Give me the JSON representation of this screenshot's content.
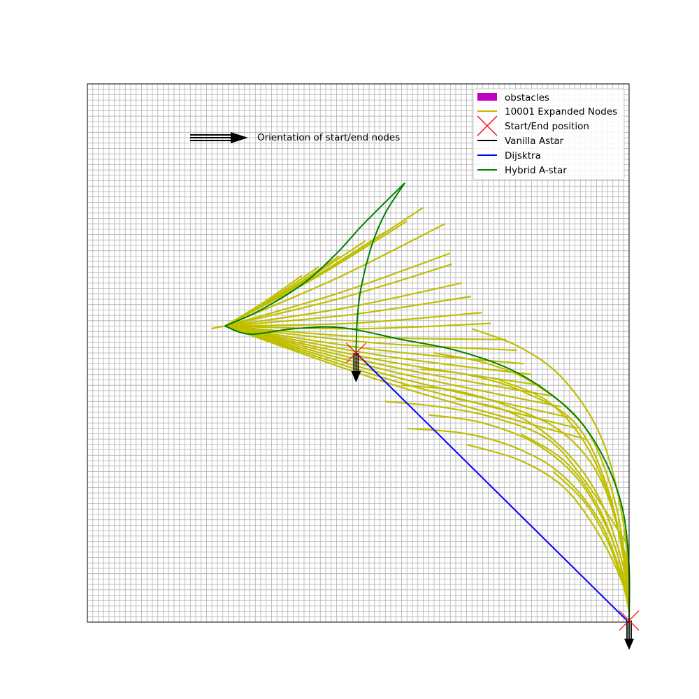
{
  "chart_data": {
    "type": "line",
    "title": "",
    "xlabel": "",
    "ylabel": "",
    "xlim": [
      0,
      100
    ],
    "ylim": [
      0,
      100
    ],
    "grid": true,
    "axis_ticks": false,
    "legend_position": "top-right",
    "legend": [
      {
        "label": "obstacles",
        "kind": "patch",
        "color": "#bf00bf"
      },
      {
        "label": "10001 Expanded Nodes",
        "kind": "line",
        "color": "#bfbf00"
      },
      {
        "label": "Start/End position",
        "kind": "x-marker",
        "color": "#ff0000"
      },
      {
        "label": "Vanilla Astar",
        "kind": "line",
        "color": "#000000"
      },
      {
        "label": "Dijsktra",
        "kind": "line",
        "color": "#0000ff"
      },
      {
        "label": "Hybrid A-star",
        "kind": "line",
        "color": "#008000"
      }
    ],
    "annotation": {
      "text": "Orientation of start/end nodes",
      "arrow_color": "#000000"
    },
    "start": {
      "x": 49.6,
      "y": 50.0,
      "heading": "down"
    },
    "end": {
      "x": 100.0,
      "y": 0.3,
      "heading": "down"
    },
    "series": [
      {
        "name": "Dijsktra",
        "color": "#0000ff",
        "points": [
          [
            49.6,
            50.0
          ],
          [
            99.6,
            0.3
          ]
        ]
      },
      {
        "name": "Vanilla Astar",
        "color": "#000000",
        "points": []
      },
      {
        "name": "Hybrid A-star",
        "color": "#008000",
        "segments": [
          [
            [
              100.0,
              0.3
            ],
            [
              100.0,
              10.0
            ],
            [
              99.0,
              20.0
            ],
            [
              96.5,
              28.0
            ],
            [
              92.0,
              36.0
            ],
            [
              86.0,
              42.0
            ],
            [
              78.0,
              47.0
            ],
            [
              68.0,
              50.5
            ],
            [
              58.0,
              52.5
            ],
            [
              47.0,
              54.7
            ],
            [
              38.0,
              54.5
            ],
            [
              30.0,
              53.5
            ],
            [
              25.4,
              55.0
            ]
          ],
          [
            [
              25.4,
              55.0
            ],
            [
              32.0,
              58.0
            ],
            [
              40.0,
              63.0
            ],
            [
              46.0,
              68.5
            ],
            [
              51.0,
              74.0
            ],
            [
              58.6,
              81.6
            ]
          ],
          [
            [
              58.6,
              81.6
            ],
            [
              55.0,
              76.0
            ],
            [
              52.5,
              70.0
            ],
            [
              50.5,
              62.0
            ],
            [
              49.8,
              56.0
            ],
            [
              49.6,
              50.0
            ]
          ]
        ]
      }
    ],
    "expanded_nodes": {
      "color": "#bfbf00",
      "upper_fan": {
        "pivot": [
          25.4,
          55.0
        ],
        "tips": [
          [
            22.9,
            54.5
          ],
          [
            39.6,
            64.4
          ],
          [
            42.7,
            66.0
          ],
          [
            46.5,
            68.0
          ],
          [
            51.3,
            70.8
          ],
          [
            55.0,
            72.5
          ],
          [
            59.0,
            74.5
          ],
          [
            62.0,
            77.0
          ],
          [
            66.0,
            74.0
          ],
          [
            66.9,
            68.5
          ],
          [
            67.3,
            66.5
          ],
          [
            69.1,
            63.0
          ],
          [
            70.8,
            60.5
          ],
          [
            72.8,
            57.5
          ],
          [
            74.5,
            55.5
          ],
          [
            77.3,
            52.5
          ],
          [
            79.3,
            50.5
          ],
          [
            80.6,
            48.0
          ],
          [
            82.0,
            46.0
          ],
          [
            83.7,
            44.0
          ],
          [
            85.9,
            42.0
          ],
          [
            87.5,
            40.0
          ],
          [
            89.0,
            38.0
          ],
          [
            90.5,
            36.0
          ],
          [
            92.0,
            34.0
          ]
        ]
      },
      "lower_strands": [
        [
          [
            55.0,
            41.0
          ],
          [
            65.0,
            40.0
          ],
          [
            75.0,
            38.0
          ],
          [
            85.0,
            34.0
          ],
          [
            92.0,
            26.0
          ],
          [
            100.0,
            14.0
          ]
        ],
        [
          [
            58.0,
            44.0
          ],
          [
            68.0,
            43.0
          ],
          [
            78.0,
            40.0
          ],
          [
            88.0,
            35.0
          ],
          [
            95.0,
            26.0
          ],
          [
            100.0,
            10.0
          ]
        ],
        [
          [
            61.5,
            47.0
          ],
          [
            70.0,
            46.0
          ],
          [
            80.0,
            43.0
          ],
          [
            90.0,
            37.0
          ],
          [
            96.0,
            25.0
          ],
          [
            100.0,
            8.0
          ]
        ],
        [
          [
            64.0,
            50.0
          ],
          [
            74.0,
            48.0
          ],
          [
            83.0,
            44.0
          ],
          [
            92.0,
            36.0
          ],
          [
            97.5,
            22.0
          ],
          [
            100.0,
            5.0
          ]
        ],
        [
          [
            71.0,
            54.5
          ],
          [
            80.0,
            51.0
          ],
          [
            88.0,
            45.0
          ],
          [
            95.0,
            34.0
          ],
          [
            99.0,
            18.0
          ],
          [
            100.0,
            3.0
          ]
        ],
        [
          [
            59.0,
            36.0
          ],
          [
            70.0,
            35.0
          ],
          [
            80.0,
            32.0
          ],
          [
            88.0,
            27.0
          ],
          [
            95.0,
            18.0
          ],
          [
            99.5,
            6.0
          ]
        ],
        [
          [
            63.0,
            38.5
          ],
          [
            73.0,
            37.0
          ],
          [
            83.0,
            33.0
          ],
          [
            91.0,
            26.0
          ],
          [
            97.0,
            15.0
          ],
          [
            100.0,
            4.0
          ]
        ],
        [
          [
            70.0,
            33.0
          ],
          [
            80.0,
            30.0
          ],
          [
            88.0,
            25.0
          ],
          [
            94.0,
            17.0
          ],
          [
            98.5,
            8.0
          ],
          [
            100.0,
            2.0
          ]
        ],
        [
          [
            68.0,
            41.5
          ],
          [
            78.0,
            39.0
          ],
          [
            87.0,
            33.0
          ],
          [
            94.0,
            24.0
          ],
          [
            98.5,
            12.0
          ],
          [
            100.0,
            3.0
          ]
        ],
        [
          [
            76.0,
            45.0
          ],
          [
            85.0,
            41.0
          ],
          [
            92.0,
            33.0
          ],
          [
            97.0,
            21.0
          ],
          [
            100.0,
            6.0
          ]
        ],
        [
          [
            80.0,
            35.0
          ],
          [
            88.0,
            30.0
          ],
          [
            94.0,
            22.0
          ],
          [
            98.0,
            12.0
          ],
          [
            100.0,
            2.0
          ]
        ],
        [
          [
            86.0,
            28.0
          ],
          [
            92.0,
            22.0
          ],
          [
            96.5,
            14.0
          ],
          [
            99.5,
            5.0
          ]
        ]
      ]
    }
  }
}
